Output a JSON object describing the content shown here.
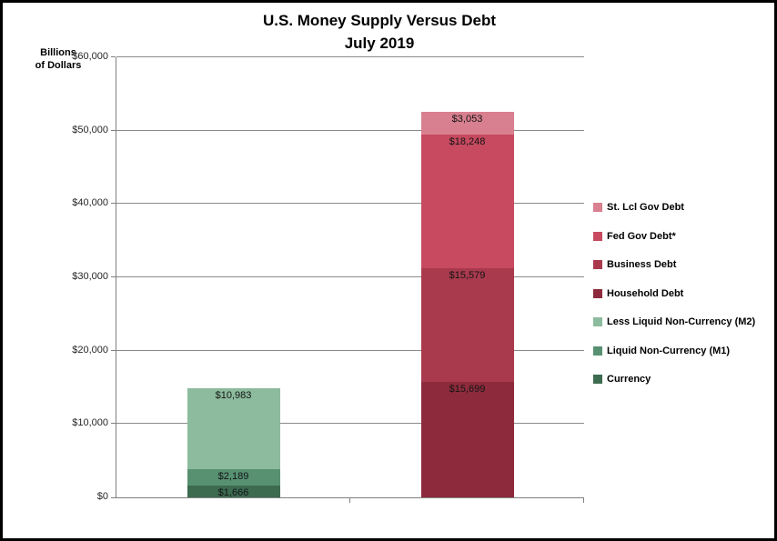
{
  "window": {
    "background_color": "#ffffff",
    "border_color": "#000000"
  },
  "chart_data": {
    "type": "stacked-bar",
    "title": "U.S. Money Supply Versus Debt",
    "subtitle": "July 2019",
    "ylabel": "Billions of Dollars",
    "ylabel_lines": [
      "Billions",
      "of Dollars"
    ],
    "ylim": [
      0,
      60000
    ],
    "grid": true,
    "legend_position": "right",
    "axis_color": "#808080",
    "gridline_color": "#8a8a8a",
    "yticks": [
      {
        "value": 0,
        "label": "$0"
      },
      {
        "value": 10000,
        "label": "$10,000"
      },
      {
        "value": 20000,
        "label": "$20,000"
      },
      {
        "value": 30000,
        "label": "$30,000"
      },
      {
        "value": 40000,
        "label": "$40,000"
      },
      {
        "value": 50000,
        "label": "$50,000"
      },
      {
        "value": 60000,
        "label": "$60,000"
      }
    ],
    "bars": [
      {
        "name": "money-supply",
        "segments": [
          {
            "label": "Currency",
            "value": 1666,
            "value_label": "$1,666",
            "color": "#3C6B50"
          },
          {
            "label": "Liquid Non-Currency (M1)",
            "value": 2189,
            "value_label": "$2,189",
            "color": "#579172"
          },
          {
            "label": "Less Liquid Non-Currency (M2)",
            "value": 10983,
            "value_label": "$10,983",
            "color": "#8CBB9D"
          }
        ]
      },
      {
        "name": "debt",
        "segments": [
          {
            "label": "Household Debt",
            "value": 15699,
            "value_label": "$15,699",
            "color": "#8D2B3C"
          },
          {
            "label": "Business Debt",
            "value": 15579,
            "value_label": "$15,579",
            "color": "#A93A4E"
          },
          {
            "label": "Fed Gov Debt*",
            "value": 18248,
            "value_label": "$18,248",
            "color": "#C74A60"
          },
          {
            "label": "St. Lcl Gov Debt",
            "value": 3053,
            "value_label": "$3,053",
            "color": "#D8808F"
          }
        ]
      }
    ],
    "legend": [
      {
        "label": "St. Lcl Gov Debt",
        "color": "#D8808F"
      },
      {
        "label": "Fed Gov Debt*",
        "color": "#C74A60"
      },
      {
        "label": "Business Debt",
        "color": "#A93A4E"
      },
      {
        "label": "Household Debt",
        "color": "#8D2B3C"
      },
      {
        "label": "Less Liquid Non-Currency (M2)",
        "color": "#8CBB9D"
      },
      {
        "label": "Liquid Non-Currency (M1)",
        "color": "#579172"
      },
      {
        "label": "Currency",
        "color": "#3C6B50"
      }
    ]
  }
}
